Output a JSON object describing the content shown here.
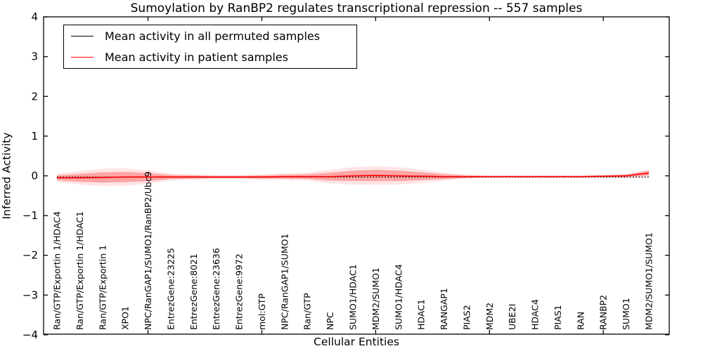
{
  "chart_data": {
    "type": "line",
    "title": "Sumoylation by RanBP2 regulates transcriptional repression -- 557 samples",
    "xlabel": "Cellular Entities",
    "ylabel": "Inferred Activity",
    "ylim": [
      -4,
      4
    ],
    "yticks": [
      4,
      3,
      2,
      1,
      0,
      -1,
      -2,
      -3,
      -4
    ],
    "ytick_labels": [
      "4",
      "3",
      "2",
      "1",
      "0",
      "−1",
      "−2",
      "−3",
      "−4"
    ],
    "xtick_indices": [
      4,
      9,
      14,
      19,
      24
    ],
    "grid": false,
    "legend_position": "upper left",
    "categories": [
      "Ran/GTP/Exportin 1/HDAC4",
      "Ran/GTP/Exportin 1/HDAC1",
      "Ran/GTP/Exportin 1",
      "XPO1",
      "NPC/RanGAP1/SUMO1/RanBP2/Ubc9",
      "EntrezGene:23225",
      "EntrezGene:8021",
      "EntrezGene:23636",
      "EntrezGene:9972",
      "mol:GTP",
      "NPC/RanGAP1/SUMO1",
      "Ran/GTP",
      "NPC",
      "SUMO1/HDAC1",
      "MDM2/SUMO1",
      "SUMO1/HDAC4",
      "HDAC1",
      "RANGAP1",
      "PIAS2",
      "MDM2",
      "UBE2I",
      "HDAC4",
      "PIAS1",
      "RAN",
      "RANBP2",
      "SUMO1",
      "MDM2/SUMO1/SUMO1"
    ],
    "series": [
      {
        "name": "Mean activity in all permuted samples",
        "color": "#000000",
        "line_style": "dotted",
        "values": [
          -0.03,
          -0.03,
          -0.03,
          -0.03,
          -0.03,
          -0.03,
          -0.03,
          -0.03,
          -0.03,
          -0.03,
          -0.03,
          -0.03,
          -0.03,
          -0.03,
          -0.03,
          -0.03,
          -0.03,
          -0.03,
          -0.03,
          -0.03,
          -0.03,
          -0.03,
          -0.03,
          -0.03,
          -0.03,
          -0.03,
          -0.03
        ]
      },
      {
        "name": "Mean activity in patient samples",
        "color": "#ff0000",
        "line_style": "solid",
        "values": [
          -0.05,
          -0.05,
          -0.04,
          -0.03,
          -0.03,
          -0.03,
          -0.03,
          -0.03,
          -0.03,
          -0.03,
          -0.02,
          -0.02,
          -0.02,
          0.0,
          0.01,
          0.0,
          -0.01,
          -0.02,
          -0.02,
          -0.02,
          -0.02,
          -0.02,
          -0.02,
          -0.02,
          -0.01,
          0.0,
          0.07
        ]
      }
    ],
    "patient_band_halfwidth": [
      0.06,
      0.1,
      0.13,
      0.13,
      0.1,
      0.05,
      0.04,
      0.03,
      0.03,
      0.04,
      0.05,
      0.06,
      0.1,
      0.13,
      0.14,
      0.13,
      0.1,
      0.06,
      0.03,
      0.02,
      0.02,
      0.02,
      0.02,
      0.02,
      0.02,
      0.03,
      0.06
    ],
    "band_fill_color": "#ff0000"
  }
}
